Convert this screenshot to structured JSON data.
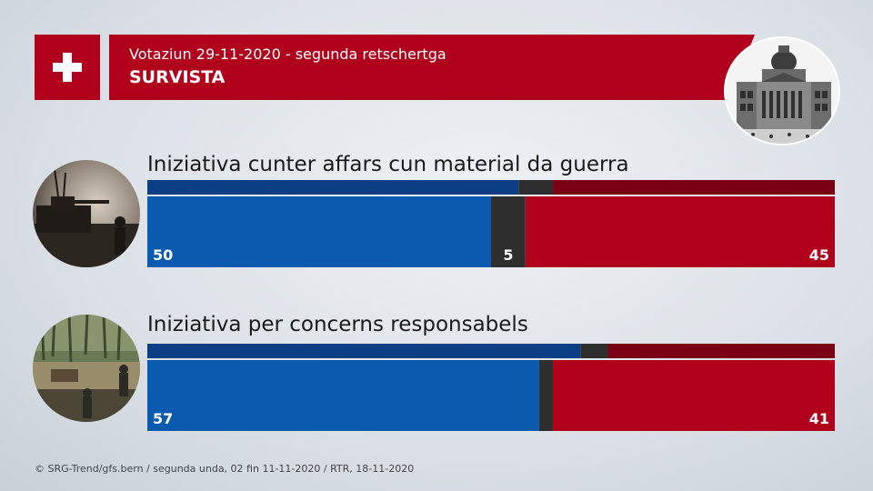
{
  "header": {
    "subtitle": "Votaziun 29-11-2020 - segunda retschertga",
    "title": "SURVISTA"
  },
  "colors": {
    "yes": "#0a5ab0",
    "yes_dark": "#0a3f86",
    "undecided": "#2e2e2e",
    "no": "#b1001c",
    "no_dark": "#7c0014"
  },
  "chart_data": [
    {
      "type": "bar",
      "title": "Iniziativa cunter affars cun material da guerra",
      "previous": {
        "yes": 54,
        "undecided": 5,
        "no": 41
      },
      "current": {
        "yes": 50,
        "undecided": 5,
        "no": 45
      },
      "labels": {
        "yes": "50",
        "undecided": "5",
        "no": "45"
      }
    },
    {
      "type": "bar",
      "title": "Iniziativa per concerns responsabels",
      "previous": {
        "yes": 63,
        "undecided": 4,
        "no": 33
      },
      "current": {
        "yes": 57,
        "undecided": 2,
        "no": 41
      },
      "labels": {
        "yes": "57",
        "undecided": "",
        "no": "41"
      }
    }
  ],
  "footer": {
    "source": "© SRG-Trend/gfs.bern  /  segunda unda, 02 fin 11-11-2020 / RTR, 18-11-2020"
  },
  "icons": [
    "swiss-flag-icon",
    "federal-palace-image",
    "military-tank-image",
    "mining-site-image"
  ]
}
